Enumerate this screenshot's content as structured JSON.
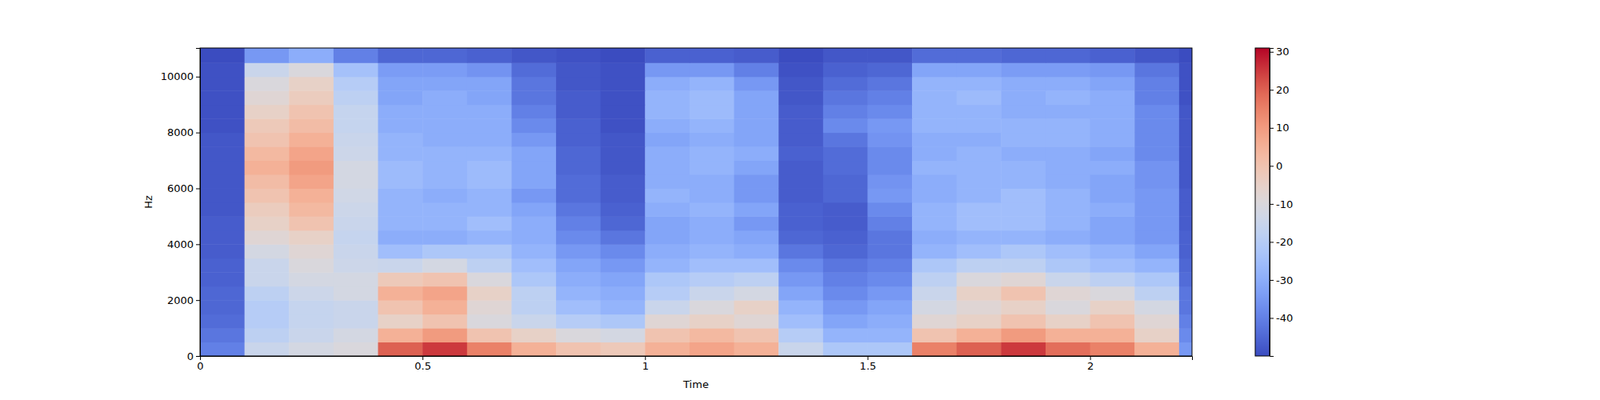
{
  "chart_data": {
    "type": "heatmap",
    "x_label": "Time",
    "y_label": "Hz",
    "x_bins": [
      0,
      0.1,
      0.2,
      0.3,
      0.4,
      0.5,
      0.6,
      0.7,
      0.8,
      0.9,
      1.0,
      1.1,
      1.2,
      1.3,
      1.4,
      1.5,
      1.6,
      1.7,
      1.8,
      1.9,
      2.0,
      2.1,
      2.2,
      2.229
    ],
    "y_bins": [
      0,
      500,
      1000,
      1500,
      2000,
      2500,
      3000,
      3500,
      4000,
      4500,
      5000,
      5500,
      6000,
      6500,
      7000,
      7500,
      8000,
      8500,
      9000,
      9500,
      10000,
      10500,
      11025
    ],
    "z": [
      [
        -40,
        -15,
        -12,
        -10,
        20,
        25,
        15,
        5,
        0,
        -2,
        5,
        8,
        5,
        -15,
        -22,
        -22,
        15,
        20,
        25,
        18,
        15,
        5,
        -35
      ],
      [
        -42,
        -18,
        -15,
        -12,
        5,
        10,
        0,
        -5,
        -10,
        -12,
        0,
        3,
        0,
        -20,
        -28,
        -28,
        0,
        5,
        10,
        5,
        5,
        -5,
        -38
      ],
      [
        -44,
        -20,
        -16,
        -15,
        -5,
        0,
        -10,
        -15,
        -20,
        -22,
        -8,
        -5,
        -8,
        -25,
        -32,
        -30,
        -8,
        -5,
        0,
        -5,
        0,
        -8,
        -40
      ],
      [
        -45,
        -20,
        -16,
        -15,
        0,
        5,
        -8,
        -18,
        -25,
        -28,
        -15,
        -10,
        -5,
        -28,
        -35,
        -32,
        -12,
        -8,
        -5,
        -10,
        -5,
        -12,
        -42
      ],
      [
        -45,
        -18,
        -14,
        -12,
        5,
        8,
        -5,
        -18,
        -28,
        -30,
        -20,
        -15,
        -12,
        -32,
        -38,
        -35,
        -15,
        -5,
        0,
        -8,
        -10,
        -18,
        -42
      ],
      [
        -46,
        -15,
        -12,
        -12,
        -2,
        0,
        -10,
        -22,
        -30,
        -32,
        -22,
        -20,
        -18,
        -35,
        -40,
        -38,
        -18,
        -10,
        -8,
        -15,
        -18,
        -22,
        -44
      ],
      [
        -46,
        -15,
        -10,
        -14,
        -15,
        -12,
        -18,
        -25,
        -32,
        -35,
        -28,
        -25,
        -25,
        -38,
        -42,
        -40,
        -22,
        -18,
        -18,
        -22,
        -25,
        -28,
        -45
      ],
      [
        -47,
        -12,
        -8,
        -15,
        -25,
        -22,
        -22,
        -28,
        -35,
        -38,
        -30,
        -28,
        -30,
        -42,
        -45,
        -42,
        -28,
        -25,
        -22,
        -25,
        -28,
        -32,
        -46
      ],
      [
        -47,
        -8,
        -5,
        -16,
        -30,
        -30,
        -28,
        -30,
        -38,
        -42,
        -32,
        -30,
        -32,
        -45,
        -46,
        -42,
        -30,
        -28,
        -28,
        -30,
        -32,
        -35,
        -46
      ],
      [
        -47,
        -5,
        0,
        -15,
        -28,
        -28,
        -25,
        -30,
        -40,
        -45,
        -32,
        -30,
        -35,
        -46,
        -47,
        -40,
        -28,
        -25,
        -25,
        -28,
        -32,
        -35,
        -47
      ],
      [
        -48,
        -3,
        3,
        -14,
        -28,
        -28,
        -28,
        -32,
        -42,
        -46,
        -30,
        -28,
        -32,
        -46,
        -47,
        -38,
        -28,
        -25,
        -25,
        -28,
        -30,
        -35,
        -47
      ],
      [
        -48,
        0,
        5,
        -13,
        -28,
        -30,
        -28,
        -35,
        -44,
        -47,
        -28,
        -30,
        -35,
        -47,
        -45,
        -35,
        -30,
        -28,
        -25,
        -28,
        -32,
        -35,
        -47
      ],
      [
        -48,
        2,
        8,
        -12,
        -26,
        -28,
        -26,
        -32,
        -44,
        -47,
        -30,
        -30,
        -35,
        -47,
        -45,
        -36,
        -30,
        -28,
        -28,
        -30,
        -32,
        -36,
        -48
      ],
      [
        -48,
        5,
        10,
        -12,
        -26,
        -28,
        -26,
        -32,
        -45,
        -48,
        -30,
        -28,
        -32,
        -47,
        -44,
        -38,
        -28,
        -28,
        -28,
        -30,
        -30,
        -36,
        -48
      ],
      [
        -48,
        3,
        8,
        -14,
        -28,
        -28,
        -28,
        -32,
        -45,
        -48,
        -30,
        -28,
        -30,
        -46,
        -44,
        -38,
        -30,
        -28,
        -30,
        -30,
        -32,
        -38,
        -48
      ],
      [
        -48,
        0,
        5,
        -15,
        -28,
        -30,
        -30,
        -35,
        -46,
        -48,
        -32,
        -30,
        -32,
        -47,
        -42,
        -36,
        -30,
        -30,
        -28,
        -28,
        -30,
        -38,
        -48
      ],
      [
        -49,
        -2,
        2,
        -16,
        -30,
        -30,
        -30,
        -38,
        -46,
        -49,
        -30,
        -28,
        -32,
        -47,
        -38,
        -35,
        -28,
        -28,
        -28,
        -28,
        -30,
        -38,
        -48
      ],
      [
        -49,
        -5,
        0,
        -16,
        -30,
        -30,
        -30,
        -40,
        -47,
        -49,
        -28,
        -26,
        -32,
        -47,
        -40,
        -38,
        -28,
        -28,
        -30,
        -30,
        -30,
        -38,
        -48
      ],
      [
        -49,
        -8,
        -3,
        -18,
        -32,
        -30,
        -32,
        -42,
        -47,
        -49,
        -28,
        -26,
        -32,
        -48,
        -42,
        -40,
        -28,
        -26,
        -30,
        -28,
        -30,
        -40,
        -49
      ],
      [
        -49,
        -10,
        -5,
        -20,
        -32,
        -32,
        -32,
        -42,
        -48,
        -49,
        -30,
        -28,
        -35,
        -48,
        -44,
        -42,
        -28,
        -28,
        -30,
        -30,
        -32,
        -40,
        -49
      ],
      [
        -49,
        -15,
        -10,
        -24,
        -34,
        -34,
        -36,
        -44,
        -48,
        -49,
        -35,
        -35,
        -40,
        -49,
        -46,
        -45,
        -32,
        -32,
        -34,
        -34,
        -35,
        -42,
        -49
      ],
      [
        -50,
        -35,
        -30,
        -40,
        -45,
        -45,
        -46,
        -48,
        -49,
        -50,
        -46,
        -46,
        -47,
        -50,
        -48,
        -48,
        -44,
        -44,
        -45,
        -45,
        -46,
        -48,
        -50
      ]
    ],
    "xlim": [
      0,
      2.229
    ],
    "ylim": [
      0,
      11025
    ],
    "xticks": [
      0,
      0.5,
      1,
      1.5,
      2
    ],
    "yticks": [
      0,
      2000,
      4000,
      6000,
      8000,
      10000
    ],
    "zlim": [
      -50,
      31
    ],
    "zticks": [
      -40,
      -30,
      -20,
      -10,
      0,
      10,
      20,
      30
    ]
  }
}
